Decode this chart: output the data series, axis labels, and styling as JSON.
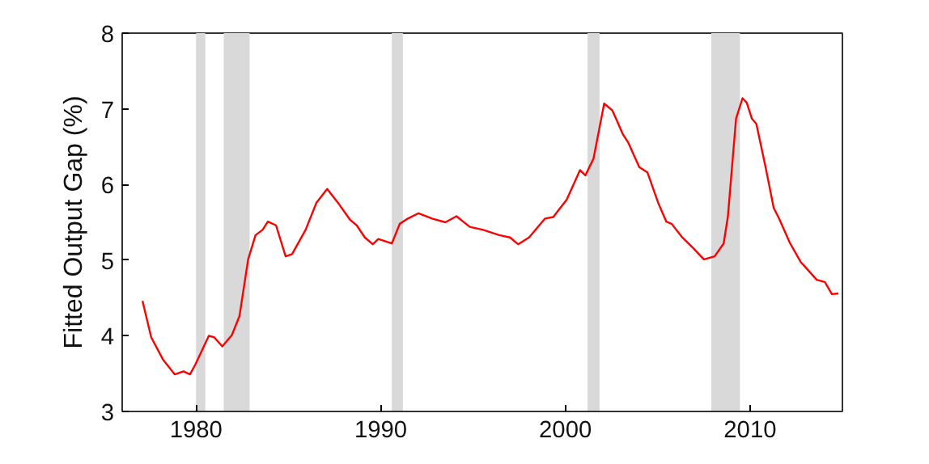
{
  "chart_data": {
    "type": "line",
    "ylabel": "Fitted Output Gap (%)",
    "xlim": [
      1976,
      2015
    ],
    "xticks": [
      1980,
      1990,
      2000,
      2010
    ],
    "ylim": [
      3,
      8
    ],
    "yticks": [
      3,
      4,
      5,
      6,
      7,
      8
    ],
    "grid": false,
    "marker": "none",
    "line_style": "solid",
    "bands": [
      {
        "axis": "x",
        "from": 1980.0,
        "to": 1980.5,
        "color": "#d9d9d9"
      },
      {
        "axis": "x",
        "from": 1981.5,
        "to": 1982.9,
        "color": "#d9d9d9"
      },
      {
        "axis": "x",
        "from": 1990.6,
        "to": 1991.2,
        "color": "#d9d9d9"
      },
      {
        "axis": "x",
        "from": 2001.2,
        "to": 2001.85,
        "color": "#d9d9d9"
      },
      {
        "axis": "x",
        "from": 2007.9,
        "to": 2009.45,
        "color": "#d9d9d9"
      }
    ],
    "series": [
      {
        "color": "#ff0000",
        "x": [
          1977.1,
          1977.57,
          1978.2,
          1978.85,
          1979.32,
          1979.67,
          1979.96,
          1980.69,
          1980.98,
          1981.42,
          1981.94,
          1982.35,
          1982.82,
          1983.22,
          1983.6,
          1983.89,
          1984.33,
          1984.85,
          1985.2,
          1985.93,
          1986.52,
          1987.1,
          1987.68,
          1988.35,
          1988.7,
          1989.14,
          1989.57,
          1989.87,
          1990.6,
          1991.03,
          1991.47,
          1992.05,
          1992.78,
          1993.5,
          1994.1,
          1994.82,
          1995.55,
          1996.42,
          1997.0,
          1997.44,
          1998.03,
          1998.9,
          1999.34,
          2000.07,
          2000.79,
          2001.08,
          2001.52,
          2002.1,
          2002.54,
          2003.12,
          2003.41,
          2004.0,
          2004.44,
          2005.02,
          2005.46,
          2005.75,
          2006.33,
          2006.92,
          2007.5,
          2008.08,
          2008.57,
          2008.8,
          2009.24,
          2009.59,
          2009.82,
          2010.1,
          2010.34,
          2010.84,
          2011.28,
          2011.57,
          2012.15,
          2012.73,
          2013.02,
          2013.61,
          2014.05,
          2014.43,
          2014.78
        ],
        "values": [
          4.46,
          3.98,
          3.69,
          3.49,
          3.53,
          3.49,
          3.62,
          4.0,
          3.98,
          3.86,
          4.01,
          4.26,
          5.01,
          5.33,
          5.4,
          5.51,
          5.46,
          5.05,
          5.08,
          5.4,
          5.76,
          5.94,
          5.76,
          5.53,
          5.46,
          5.3,
          5.21,
          5.28,
          5.22,
          5.48,
          5.55,
          5.62,
          5.55,
          5.5,
          5.58,
          5.44,
          5.4,
          5.33,
          5.3,
          5.21,
          5.3,
          5.55,
          5.57,
          5.8,
          6.19,
          6.12,
          6.34,
          7.07,
          6.98,
          6.66,
          6.55,
          6.23,
          6.16,
          5.76,
          5.51,
          5.48,
          5.3,
          5.16,
          5.01,
          5.05,
          5.22,
          5.58,
          6.87,
          7.14,
          7.08,
          6.87,
          6.8,
          6.23,
          5.69,
          5.55,
          5.23,
          4.98,
          4.9,
          4.74,
          4.71,
          4.55,
          4.56
        ]
      }
    ]
  }
}
